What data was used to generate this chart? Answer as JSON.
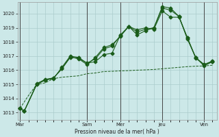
{
  "background_color": "#cce8e8",
  "grid_color": "#aacccc",
  "line_color": "#1a5c1a",
  "title": "Pression niveau de la mer( hPa )",
  "ylim": [
    1012.5,
    1020.8
  ],
  "yticks": [
    1013,
    1014,
    1015,
    1016,
    1017,
    1018,
    1019,
    1020
  ],
  "x_day_labels": [
    "Mar",
    "Sam",
    "Mer",
    "Jeu",
    "Ven"
  ],
  "x_day_positions": [
    0,
    8,
    12,
    17,
    22
  ],
  "series1_x": [
    0,
    0.5,
    2,
    3,
    4,
    5,
    6,
    7,
    8,
    9,
    10,
    11,
    12,
    13,
    14,
    15,
    16,
    17,
    18,
    19,
    20,
    21,
    22,
    23
  ],
  "series1_y": [
    1013.3,
    1013.1,
    1015.0,
    1015.3,
    1015.4,
    1016.2,
    1017.0,
    1016.9,
    1016.5,
    1016.6,
    1017.1,
    1017.2,
    1018.5,
    1019.1,
    1018.85,
    1019.0,
    1018.9,
    1020.2,
    1019.75,
    1019.75,
    1018.3,
    1016.9,
    1016.4,
    1016.6
  ],
  "series2_x": [
    0,
    0.5,
    2,
    3,
    4,
    5,
    6,
    7,
    8,
    9,
    10,
    11,
    12,
    13,
    14,
    15,
    16,
    17,
    18,
    19,
    20,
    21,
    22,
    23
  ],
  "series2_y": [
    1013.3,
    1013.1,
    1015.0,
    1015.3,
    1015.45,
    1016.1,
    1016.95,
    1016.8,
    1016.4,
    1016.9,
    1017.6,
    1017.8,
    1018.4,
    1019.1,
    1018.5,
    1018.8,
    1019.0,
    1020.5,
    1020.4,
    1019.8,
    1018.2,
    1016.9,
    1016.3,
    1016.6
  ],
  "series3_x": [
    0,
    0.5,
    2,
    3,
    4,
    5,
    6,
    7,
    8,
    9,
    10,
    11,
    12,
    13,
    14,
    15,
    16,
    17,
    18,
    19,
    20,
    21,
    22,
    23
  ],
  "series3_y": [
    1013.3,
    1013.1,
    1015.05,
    1015.35,
    1015.45,
    1016.1,
    1016.9,
    1016.85,
    1016.5,
    1016.8,
    1017.5,
    1017.7,
    1018.45,
    1019.1,
    1018.7,
    1018.9,
    1019.0,
    1020.4,
    1020.25,
    1019.8,
    1018.3,
    1016.85,
    1016.4,
    1016.65
  ],
  "series4_x": [
    0,
    1,
    2,
    3,
    4,
    5,
    6,
    7,
    8,
    9,
    10,
    11,
    12,
    13,
    14,
    15,
    16,
    17,
    18,
    19,
    20,
    21,
    22,
    23
  ],
  "series4_y": [
    1013.3,
    1014.2,
    1015.0,
    1015.1,
    1015.4,
    1015.5,
    1015.55,
    1015.6,
    1015.75,
    1015.8,
    1015.9,
    1015.92,
    1015.95,
    1015.97,
    1016.0,
    1016.02,
    1016.05,
    1016.1,
    1016.15,
    1016.2,
    1016.25,
    1016.28,
    1016.3,
    1016.35
  ]
}
